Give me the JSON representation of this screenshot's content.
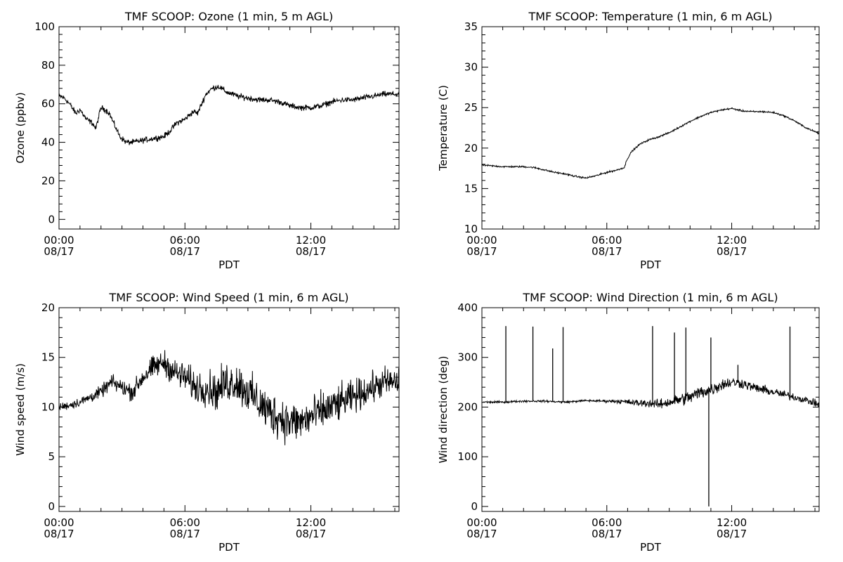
{
  "chart_data": [
    {
      "type": "line",
      "title": "TMF SCOOP: Ozone (1 min, 5 m AGL)",
      "xlabel": "PDT",
      "ylabel": "Ozone (ppbv)",
      "xlim": [
        0,
        16.2
      ],
      "ylim": [
        -5,
        100
      ],
      "x_ticks": [
        {
          "v": 0,
          "l1": "00:00",
          "l2": "08/17"
        },
        {
          "v": 6,
          "l1": "06:00",
          "l2": "08/17"
        },
        {
          "v": 12,
          "l1": "12:00",
          "l2": "08/17"
        }
      ],
      "y_ticks": [
        0,
        20,
        40,
        60,
        80,
        100
      ],
      "series": [
        {
          "x": [
            0,
            0.25,
            0.5,
            0.8,
            1.0,
            1.3,
            1.6,
            1.75,
            2.0,
            2.2,
            2.4,
            2.6,
            2.9,
            3.2,
            3.5,
            4.0,
            4.5,
            5.0,
            5.3,
            5.6,
            6.0,
            6.4,
            6.6,
            6.8,
            7.0,
            7.3,
            7.6,
            8.0,
            8.5,
            9.0,
            9.5,
            10.0,
            10.5,
            11.0,
            11.5,
            12.0,
            12.5,
            13.0,
            13.5,
            14.0,
            14.5,
            15.0,
            15.5,
            16.2
          ],
          "y": [
            64,
            63,
            60,
            55,
            57,
            52,
            50,
            47,
            58,
            57,
            55,
            50,
            43,
            40,
            40,
            41,
            42,
            43,
            46,
            50,
            52,
            56,
            55,
            60,
            65,
            68,
            69,
            66,
            64,
            63,
            62,
            62,
            61,
            59,
            58,
            58,
            59,
            61,
            62,
            62,
            63,
            64,
            65,
            65
          ],
          "noise": 2.2
        }
      ]
    },
    {
      "type": "line",
      "title": "TMF SCOOP: Temperature (1 min, 6 m AGL)",
      "xlabel": "PDT",
      "ylabel": "Temperature (C)",
      "xlim": [
        0,
        16.2
      ],
      "ylim": [
        10,
        35
      ],
      "x_ticks": [
        {
          "v": 0,
          "l1": "00:00",
          "l2": "08/17"
        },
        {
          "v": 6,
          "l1": "06:00",
          "l2": "08/17"
        },
        {
          "v": 12,
          "l1": "12:00",
          "l2": "08/17"
        }
      ],
      "y_ticks": [
        10,
        15,
        20,
        25,
        30,
        35
      ],
      "series": [
        {
          "x": [
            0,
            0.5,
            1.0,
            1.5,
            2.0,
            2.5,
            3.0,
            3.5,
            4.0,
            4.5,
            5.0,
            5.5,
            6.0,
            6.5,
            6.85,
            6.95,
            7.2,
            7.6,
            8.0,
            8.5,
            9.0,
            9.5,
            10.0,
            10.5,
            11.0,
            11.5,
            12.0,
            12.5,
            13.0,
            13.5,
            14.0,
            14.5,
            15.0,
            15.5,
            16.2
          ],
          "y": [
            17.9,
            17.8,
            17.7,
            17.7,
            17.7,
            17.6,
            17.3,
            17.0,
            16.8,
            16.5,
            16.3,
            16.6,
            17.0,
            17.3,
            17.6,
            18.5,
            19.6,
            20.5,
            21.0,
            21.4,
            21.9,
            22.6,
            23.3,
            23.9,
            24.4,
            24.7,
            24.9,
            24.6,
            24.5,
            24.5,
            24.4,
            24.0,
            23.4,
            22.6,
            21.8
          ],
          "noise": 0.15
        }
      ]
    },
    {
      "type": "line",
      "title": "TMF SCOOP: Wind Speed (1 min, 6 m AGL)",
      "xlabel": "PDT",
      "ylabel": "Wind speed (m/s)",
      "xlim": [
        0,
        16.2
      ],
      "ylim": [
        -0.5,
        20
      ],
      "x_ticks": [
        {
          "v": 0,
          "l1": "00:00",
          "l2": "08/17"
        },
        {
          "v": 6,
          "l1": "06:00",
          "l2": "08/17"
        },
        {
          "v": 12,
          "l1": "12:00",
          "l2": "08/17"
        }
      ],
      "y_ticks": [
        0,
        5,
        10,
        15,
        20
      ],
      "series": [
        {
          "x": [
            0,
            0.5,
            1.0,
            1.5,
            2.0,
            2.5,
            3.0,
            3.5,
            4.0,
            4.5,
            5.0,
            5.5,
            6.0,
            6.5,
            7.0,
            7.5,
            8.0,
            8.5,
            9.0,
            9.5,
            10.0,
            10.5,
            11.0,
            11.5,
            12.0,
            12.5,
            13.0,
            13.5,
            14.0,
            14.5,
            15.0,
            15.5,
            16.2
          ],
          "y": [
            10,
            10.2,
            10.5,
            11,
            11.5,
            12.5,
            12,
            11.5,
            13,
            14,
            14.5,
            13.5,
            13,
            12,
            12,
            11.5,
            12.5,
            12.5,
            11.5,
            10.5,
            9.5,
            9,
            8.5,
            8.5,
            9,
            9.5,
            10,
            10.5,
            11,
            11.5,
            12,
            12.5,
            12.5
          ],
          "noise": [
            0.6,
            0.6,
            0.7,
            0.8,
            0.9,
            1.1,
            1.2,
            1.3,
            1.5,
            1.7,
            1.8,
            2.0,
            2.2,
            2.4,
            2.6,
            2.8,
            3.0,
            3.0,
            3.0,
            3.1,
            3.2,
            3.2,
            3.1,
            3.0,
            3.0,
            2.9,
            2.8,
            2.6,
            2.4,
            2.3,
            2.2,
            2.2,
            2.2
          ]
        }
      ]
    },
    {
      "type": "line",
      "title": "TMF SCOOP: Wind Direction (1 min, 6 m AGL)",
      "xlabel": "PDT",
      "ylabel": "Wind direction (deg)",
      "xlim": [
        0,
        16.2
      ],
      "ylim": [
        -10,
        400
      ],
      "x_ticks": [
        {
          "v": 0,
          "l1": "00:00",
          "l2": "08/17"
        },
        {
          "v": 6,
          "l1": "06:00",
          "l2": "08/17"
        },
        {
          "v": 12,
          "l1": "12:00",
          "l2": "08/17"
        }
      ],
      "y_ticks": [
        0,
        100,
        200,
        300,
        400
      ],
      "series": [
        {
          "x": [
            0,
            1.0,
            2.0,
            3.0,
            4.0,
            5.0,
            6.0,
            6.5,
            7.0,
            7.5,
            8.0,
            8.5,
            9.0,
            9.5,
            10.0,
            10.5,
            11.0,
            11.5,
            12.0,
            12.5,
            13.0,
            13.5,
            14.0,
            14.5,
            15.0,
            15.5,
            16.2
          ],
          "y": [
            210,
            210,
            212,
            212,
            210,
            213,
            212,
            212,
            210,
            208,
            208,
            205,
            210,
            215,
            220,
            230,
            235,
            245,
            250,
            248,
            240,
            235,
            230,
            225,
            220,
            215,
            205
          ],
          "noise": [
            3,
            3,
            3,
            3,
            3,
            3,
            4,
            6,
            8,
            10,
            12,
            14,
            16,
            18,
            20,
            20,
            20,
            18,
            16,
            15,
            14,
            13,
            12,
            12,
            11,
            10,
            10
          ]
        }
      ],
      "spikes": [
        {
          "x": 1.15,
          "y": 363
        },
        {
          "x": 2.45,
          "y": 362
        },
        {
          "x": 3.4,
          "y": 318
        },
        {
          "x": 3.9,
          "y": 361
        },
        {
          "x": 8.2,
          "y": 363
        },
        {
          "x": 9.25,
          "y": 350
        },
        {
          "x": 9.8,
          "y": 360
        },
        {
          "x": 11.0,
          "y": 340
        },
        {
          "x": 12.3,
          "y": 285
        },
        {
          "x": 14.8,
          "y": 362
        },
        {
          "x": 10.9,
          "y": 0
        }
      ]
    }
  ]
}
